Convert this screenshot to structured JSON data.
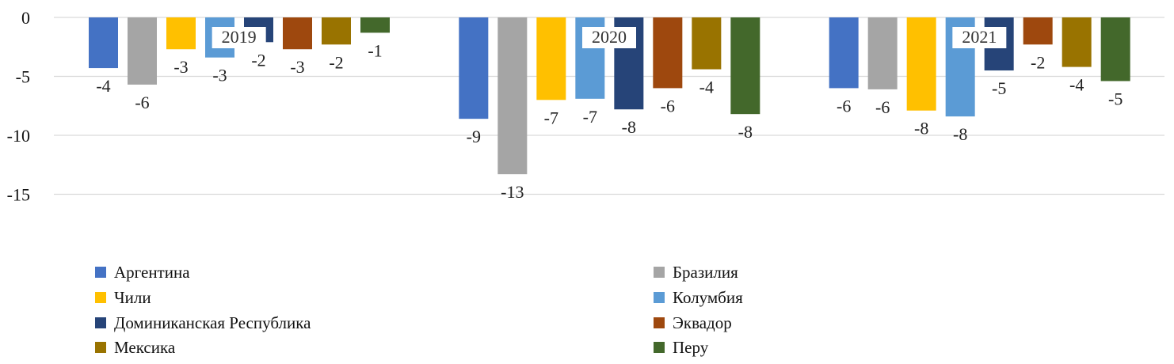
{
  "chart_data": {
    "type": "bar",
    "categories": [
      "2019",
      "2020",
      "2021"
    ],
    "ylim": [
      -15,
      0
    ],
    "yticks": [
      0,
      -5,
      -10,
      -15
    ],
    "grid": true,
    "legend_position": "bottom",
    "series": [
      {
        "name": "Аргентина",
        "color": "#4472C4",
        "values": [
          -4.3,
          -8.6,
          -6.0
        ],
        "labels": [
          "-4",
          "-9",
          "-6"
        ]
      },
      {
        "name": "Бразилия",
        "color": "#A5A5A5",
        "values": [
          -5.7,
          -13.3,
          -6.1
        ],
        "labels": [
          "-6",
          "-13",
          "-6"
        ]
      },
      {
        "name": "Чили",
        "color": "#FFC000",
        "values": [
          -2.7,
          -7.0,
          -7.9
        ],
        "labels": [
          "-3",
          "-7",
          "-8"
        ]
      },
      {
        "name": "Колумбия",
        "color": "#5B9BD5",
        "values": [
          -3.4,
          -6.9,
          -8.4
        ],
        "labels": [
          "-3",
          "-7",
          "-8"
        ]
      },
      {
        "name": "Доминиканская Республика",
        "color": "#264478",
        "values": [
          -2.1,
          -7.8,
          -4.5
        ],
        "labels": [
          "-2",
          "-8",
          "-5"
        ]
      },
      {
        "name": "Эквадор",
        "color": "#9E480E",
        "values": [
          -2.7,
          -6.0,
          -2.3
        ],
        "labels": [
          "-3",
          "-6",
          "-2"
        ]
      },
      {
        "name": "Мексика",
        "color": "#997300",
        "values": [
          -2.3,
          -4.4,
          -4.2
        ],
        "labels": [
          "-2",
          "-4",
          "-4"
        ]
      },
      {
        "name": "Перу",
        "color": "#43682B",
        "values": [
          -1.3,
          -8.2,
          -5.4
        ],
        "labels": [
          "-1",
          "-8",
          "-5"
        ]
      }
    ]
  }
}
